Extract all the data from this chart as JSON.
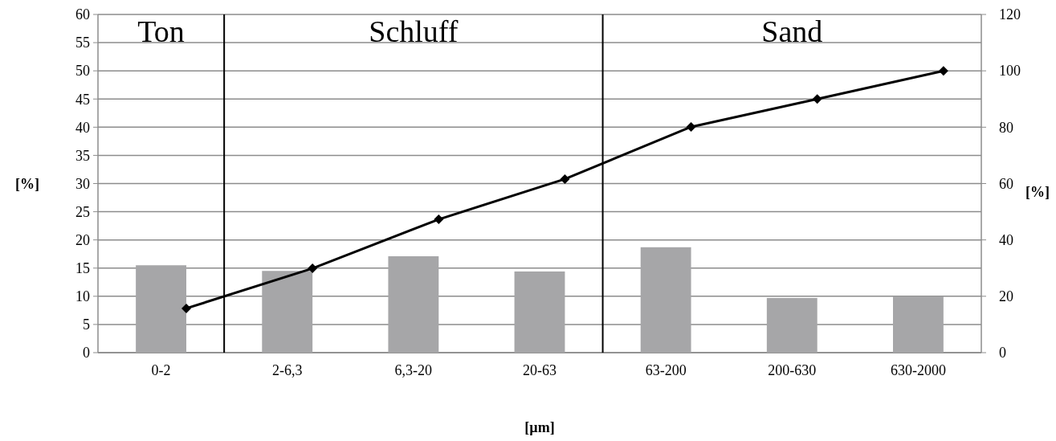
{
  "chart_data": {
    "type": "bar",
    "categories": [
      "0-2",
      "2-6,3",
      "6,3-20",
      "20-63",
      "63-200",
      "200-630",
      "630-2000"
    ],
    "series": [
      {
        "color": "#a6a6a8",
        "values": [
          15.5,
          14.5,
          17.1,
          14.4,
          18.7,
          9.7,
          10.0
        ]
      },
      {
        "type": "line",
        "axis": "y2",
        "color": "#000000",
        "values": [
          15.7,
          29.9,
          47.3,
          61.6,
          80.1,
          90,
          100
        ]
      }
    ],
    "ylim": [
      0,
      60
    ],
    "yticks": [
      0,
      5,
      10,
      15,
      20,
      25,
      30,
      35,
      40,
      45,
      50,
      55,
      60
    ],
    "y2lim": [
      0,
      120
    ],
    "y2ticks": [
      0,
      20,
      40,
      60,
      80,
      100,
      120
    ],
    "ylabel": "[%]",
    "y2label": "[%]",
    "xlabel": "[µm]",
    "grid": "y",
    "marker": "diamond",
    "line_style": "solid",
    "annotations": [
      "Ton",
      "Schluff",
      "Sand"
    ]
  }
}
